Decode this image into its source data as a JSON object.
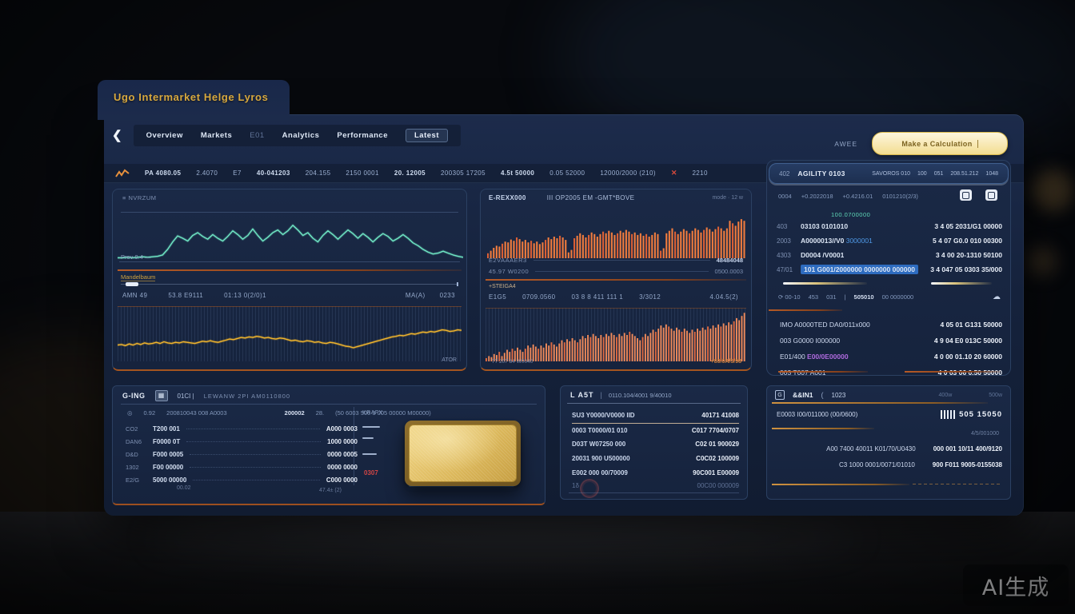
{
  "window": {
    "tab_title": "Ugo Intermarket Helge Lyros"
  },
  "icons": {
    "back": "❮",
    "grid": "▦",
    "cloud": "☁",
    "red_x": "✕",
    "refresh": "⟳",
    "dot": "◎",
    "g": "G"
  },
  "nav": {
    "tabs": [
      {
        "label": "Overview"
      },
      {
        "label": "Markets"
      },
      {
        "label": "E01"
      },
      {
        "label": "Analytics"
      },
      {
        "label": "Performance"
      },
      {
        "label": "Latest"
      }
    ],
    "right_label": "AWEE",
    "cta_label": "Make a Calculation"
  },
  "toolbar": {
    "items": [
      "PA 4080.05",
      "2.4070",
      "E7",
      "40-041203",
      "204.155",
      "2150 0001",
      "20. 12005",
      "200305 17205",
      "4.5t 50000",
      "0.05 52000",
      "12000/2000 (210)",
      "2210"
    ]
  },
  "left_panel": {
    "top_label": "≡ NVRZUM",
    "prev_label": "Prev 0.4 —",
    "gold_label": "Mandelbaum",
    "stats": [
      "AMN 49",
      "53.8 E9111",
      "01:13 0(2/0)1"
    ],
    "stats_right": [
      "MA(A)",
      "0233"
    ],
    "ator": "ATOR"
  },
  "mid_panel": {
    "header_left": "E-REXX000",
    "header_mid": "III OP2005 EM -GMT*BOVE",
    "header_right": "mode · 12 w",
    "row1_left": "E2VAAAER3",
    "row1_right": "48484048",
    "row2_left": "45.97 W0200",
    "row2_right": "0500.0003",
    "steig": "+STEIGA4",
    "stats": [
      "E1G5",
      "0709.0560",
      "03 8 8 411 111 1",
      "3/3012"
    ],
    "stats_right": [
      "4.04.5(2)"
    ],
    "bottom_left_label": "77 207 84 W0040",
    "bottom_right_label": "+80/0A/5/98"
  },
  "right_panel": {
    "header": {
      "code": "402",
      "title": "AGILITY 0103",
      "meta": [
        "SAVOROS 010",
        "100",
        "051",
        "208.51.212",
        "1048"
      ]
    },
    "meta_row": [
      "0004",
      "+0.2022018",
      "+0.4216.01",
      "0101210(2/3)"
    ],
    "group_label": "100.0700000",
    "orders": [
      {
        "code": "403",
        "name": "03103 0101010",
        "link": "",
        "value": "3 4 05 2031/G1 00000"
      },
      {
        "code": "2003",
        "name": "A0000013//V0 ",
        "link": "3000001",
        "value": "5 4 07 G0.0 010 00300"
      },
      {
        "code": "4303",
        "name": "D0004 /V0001",
        "link": "",
        "value": "3 4 00 20-1310 50100"
      },
      {
        "code": "47/01",
        "name": "101 G001/2000000 0000000 000000",
        "link": "",
        "value": "3 4 047 05 0303 35/000"
      }
    ],
    "tools": {
      "a": "⟳ 00-10",
      "b": "453",
      "c": "031",
      "sep": "|",
      "bold": "505010",
      "dim": "00 0000000"
    },
    "positions": [
      {
        "name": "IMO A0000TED DA0/011x000",
        "accent": "",
        "value": "4 05 01 G131 50000"
      },
      {
        "name": "003 G0000 I000000",
        "accent": "",
        "value": "4 9 04 E0 013C 50000"
      },
      {
        "name": "E01/400 ",
        "accent": "E00/0E00000",
        "value": "4 0 00 01.10 20 60000"
      },
      {
        "name": "003 T007 A001",
        "accent": "",
        "value": "4 0 03 06 0.50 50000"
      }
    ]
  },
  "bottom_left": {
    "title": "G-ING",
    "code": "01CI |",
    "meta": "LEWANW   2PI   AM0110800",
    "colhead": [
      "◎",
      "0.92",
      "200810043 008 A0003"
    ],
    "colhead_bold": "200002",
    "colhead_b": "28.",
    "colhead_c": "(50 6003 500 3 005 00000 M00000)",
    "rows": [
      {
        "code": "CO2",
        "name": "T200 001",
        "value": "A000 0003"
      },
      {
        "code": "DAN6",
        "name": "F0000 0T",
        "value": "1000 0000"
      },
      {
        "code": "D&D",
        "name": "F000 0005",
        "value": "0000 0005"
      },
      {
        "code": "1302",
        "name": "F00 00000",
        "value": "0000 0000"
      },
      {
        "code": "E2/G",
        "name": "5000 00000",
        "value": "C000 0000"
      }
    ],
    "foot_left": "00.02",
    "foot_right": "47.4± (2)",
    "side_label": "KRAFX",
    "alert": "0307"
  },
  "bottom_mid": {
    "title": "L A5T",
    "sep": "|",
    "meta": "0110.104/4001 9/40010",
    "rows": [
      {
        "name": "SU3  Y0000/V0000 IID",
        "value": "40171 41008"
      },
      {
        "name": "0003 T0000/01 010",
        "value": "C017 7704/0707"
      },
      {
        "name": "D03T W07250 000",
        "value": "C02 01 900029"
      },
      {
        "name": "20031 900 U500000",
        "value": "C0C02 100009"
      },
      {
        "name": "E002  000 00/70009",
        "value": "90C001 E00009"
      }
    ],
    "dim_row": {
      "name": "1δ",
      "value": "00C00 000009"
    }
  },
  "bottom_right": {
    "title": "&&IN1",
    "paren": "(",
    "code": "1023",
    "right1": "400w",
    "right2": "500w",
    "row1_label": "E0003 I00/011000 (00/0600)",
    "barcode_digits": "505 15050",
    "small": "4/5/001000",
    "rows": [
      {
        "name": "A00 7400 40011 K01/70/U0430",
        "value": "000 001 10/11 400/9120"
      },
      {
        "name": "C3 1000 0001/0071/01010",
        "value": "900 F011 9005-0155038"
      }
    ]
  },
  "watermark": "AI生成",
  "charts": {
    "teal": {
      "type": "line",
      "color": "#6fe6c4",
      "values": [
        8,
        8,
        9,
        8,
        9,
        10,
        9,
        10,
        11,
        14,
        26,
        42,
        55,
        50,
        44,
        56,
        62,
        54,
        48,
        58,
        50,
        44,
        54,
        66,
        58,
        48,
        56,
        70,
        56,
        44,
        52,
        62,
        68,
        58,
        66,
        78,
        68,
        56,
        62,
        50,
        42,
        56,
        66,
        58,
        48,
        58,
        68,
        60,
        50,
        60,
        52,
        42,
        52,
        60,
        54,
        44,
        50,
        58,
        50,
        40,
        34,
        26,
        20,
        16,
        18,
        22,
        18,
        14,
        11,
        9
      ]
    },
    "yellow": {
      "type": "line",
      "color": "#f0b42c",
      "values": [
        30,
        31,
        29,
        32,
        30,
        33,
        31,
        34,
        32,
        33,
        35,
        33,
        36,
        34,
        33,
        35,
        34,
        36,
        35,
        34,
        33,
        35,
        37,
        36,
        38,
        36,
        35,
        37,
        39,
        41,
        40,
        42,
        44,
        43,
        45,
        44,
        46,
        45,
        43,
        44,
        42,
        41,
        43,
        42,
        40,
        38,
        39,
        37,
        36,
        38,
        37,
        35,
        36,
        34,
        33,
        35,
        34,
        32,
        30,
        28,
        27,
        25,
        27,
        29,
        31,
        33,
        35,
        37,
        39,
        41,
        43,
        45,
        46,
        48,
        47,
        49,
        51,
        50,
        52,
        54,
        53,
        55,
        54,
        56,
        58,
        57,
        55,
        56,
        58,
        57
      ]
    },
    "mid_top": {
      "type": "bars",
      "color": "#f07c3e",
      "color2": "#d95f35",
      "values": [
        12,
        18,
        25,
        30,
        28,
        35,
        40,
        38,
        45,
        42,
        50,
        46,
        40,
        44,
        38,
        42,
        36,
        40,
        34,
        38,
        44,
        50,
        46,
        52,
        48,
        54,
        50,
        44,
        14,
        20,
        48,
        54,
        60,
        56,
        50,
        56,
        62,
        58,
        52,
        58,
        64,
        60,
        66,
        62,
        56,
        60,
        66,
        62,
        68,
        64,
        58,
        62,
        56,
        60,
        54,
        58,
        52,
        56,
        62,
        58,
        18,
        24,
        60,
        66,
        72,
        64,
        58,
        64,
        70,
        66,
        60,
        66,
        72,
        68,
        62,
        68,
        74,
        70,
        64,
        70,
        76,
        72,
        66,
        72,
        90,
        84,
        78,
        88,
        94,
        90
      ]
    },
    "mid_bottom": {
      "type": "bars",
      "color": "#f08a5a",
      "color2": "#e06a40",
      "values": [
        6,
        10,
        8,
        14,
        12,
        18,
        10,
        16,
        22,
        18,
        24,
        20,
        26,
        22,
        18,
        24,
        30,
        26,
        32,
        28,
        24,
        30,
        26,
        34,
        30,
        36,
        32,
        28,
        34,
        40,
        36,
        42,
        38,
        44,
        40,
        36,
        42,
        48,
        44,
        50,
        46,
        52,
        48,
        44,
        50,
        46,
        52,
        48,
        54,
        50,
        46,
        52,
        48,
        54,
        50,
        56,
        52,
        48,
        44,
        40,
        46,
        52,
        48,
        54,
        60,
        56,
        62,
        68,
        64,
        70,
        66,
        62,
        58,
        64,
        60,
        56,
        62,
        58,
        54,
        60,
        56,
        62,
        58,
        64,
        60,
        66,
        62,
        68,
        64,
        70,
        66,
        72,
        68,
        74,
        70,
        76,
        82,
        78,
        86,
        92
      ]
    }
  }
}
